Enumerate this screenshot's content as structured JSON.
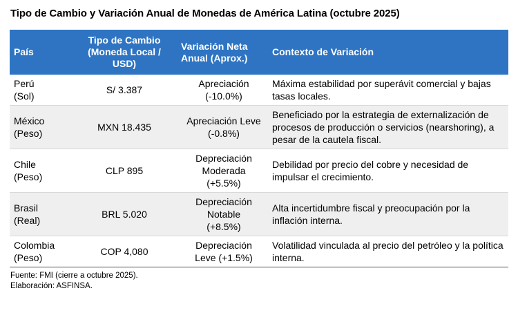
{
  "title": "Tipo de Cambio y Variación Anual de Monedas de América Latina (octubre 2025)",
  "colors": {
    "header_bg": "#2E74C2",
    "header_text": "#FFFFFF",
    "stripe_bg": "#EFEFEF",
    "row_divider": "#D9D9D9",
    "table_bottom_border": "#4D4D4D"
  },
  "table": {
    "headers": [
      "País",
      "Tipo de Cambio\n(Moneda Local /\nUSD)",
      "Variación Neta\nAnual (Aprox.)",
      "Contexto de Variación"
    ],
    "rows": [
      {
        "country": "Perú\n(Sol)",
        "rate": "S/ 3.387",
        "variation": "Apreciación\n(-10.0%)",
        "context": "Máxima estabilidad por superávit comercial y bajas tasas locales."
      },
      {
        "country": "México\n(Peso)",
        "rate": "MXN 18.435",
        "variation": "Apreciación Leve\n(-0.8%)",
        "context": "Beneficiado por la estrategia de externalización de procesos de producción o servicios (nearshoring), a pesar de la cautela fiscal."
      },
      {
        "country": "Chile\n(Peso)",
        "rate": "CLP 895",
        "variation": "Depreciación\nModerada\n(+5.5%)",
        "context": "Debilidad por precio del cobre y necesidad de impulsar el crecimiento."
      },
      {
        "country": "Brasil\n(Real)",
        "rate": "BRL 5.020",
        "variation": "Depreciación\nNotable\n(+8.5%)",
        "context": "Alta incertidumbre fiscal y preocupación por la inflación interna."
      },
      {
        "country": "Colombia\n(Peso)",
        "rate": "COP 4,080",
        "variation": "Depreciación\nLeve (+1.5%)",
        "context": "Volatilidad vinculada al precio del petróleo y la política interna."
      }
    ]
  },
  "footer": {
    "source": "Fuente: FMI (cierre a octubre 2025).",
    "elaboration": "Elaboración: ASFINSA."
  }
}
